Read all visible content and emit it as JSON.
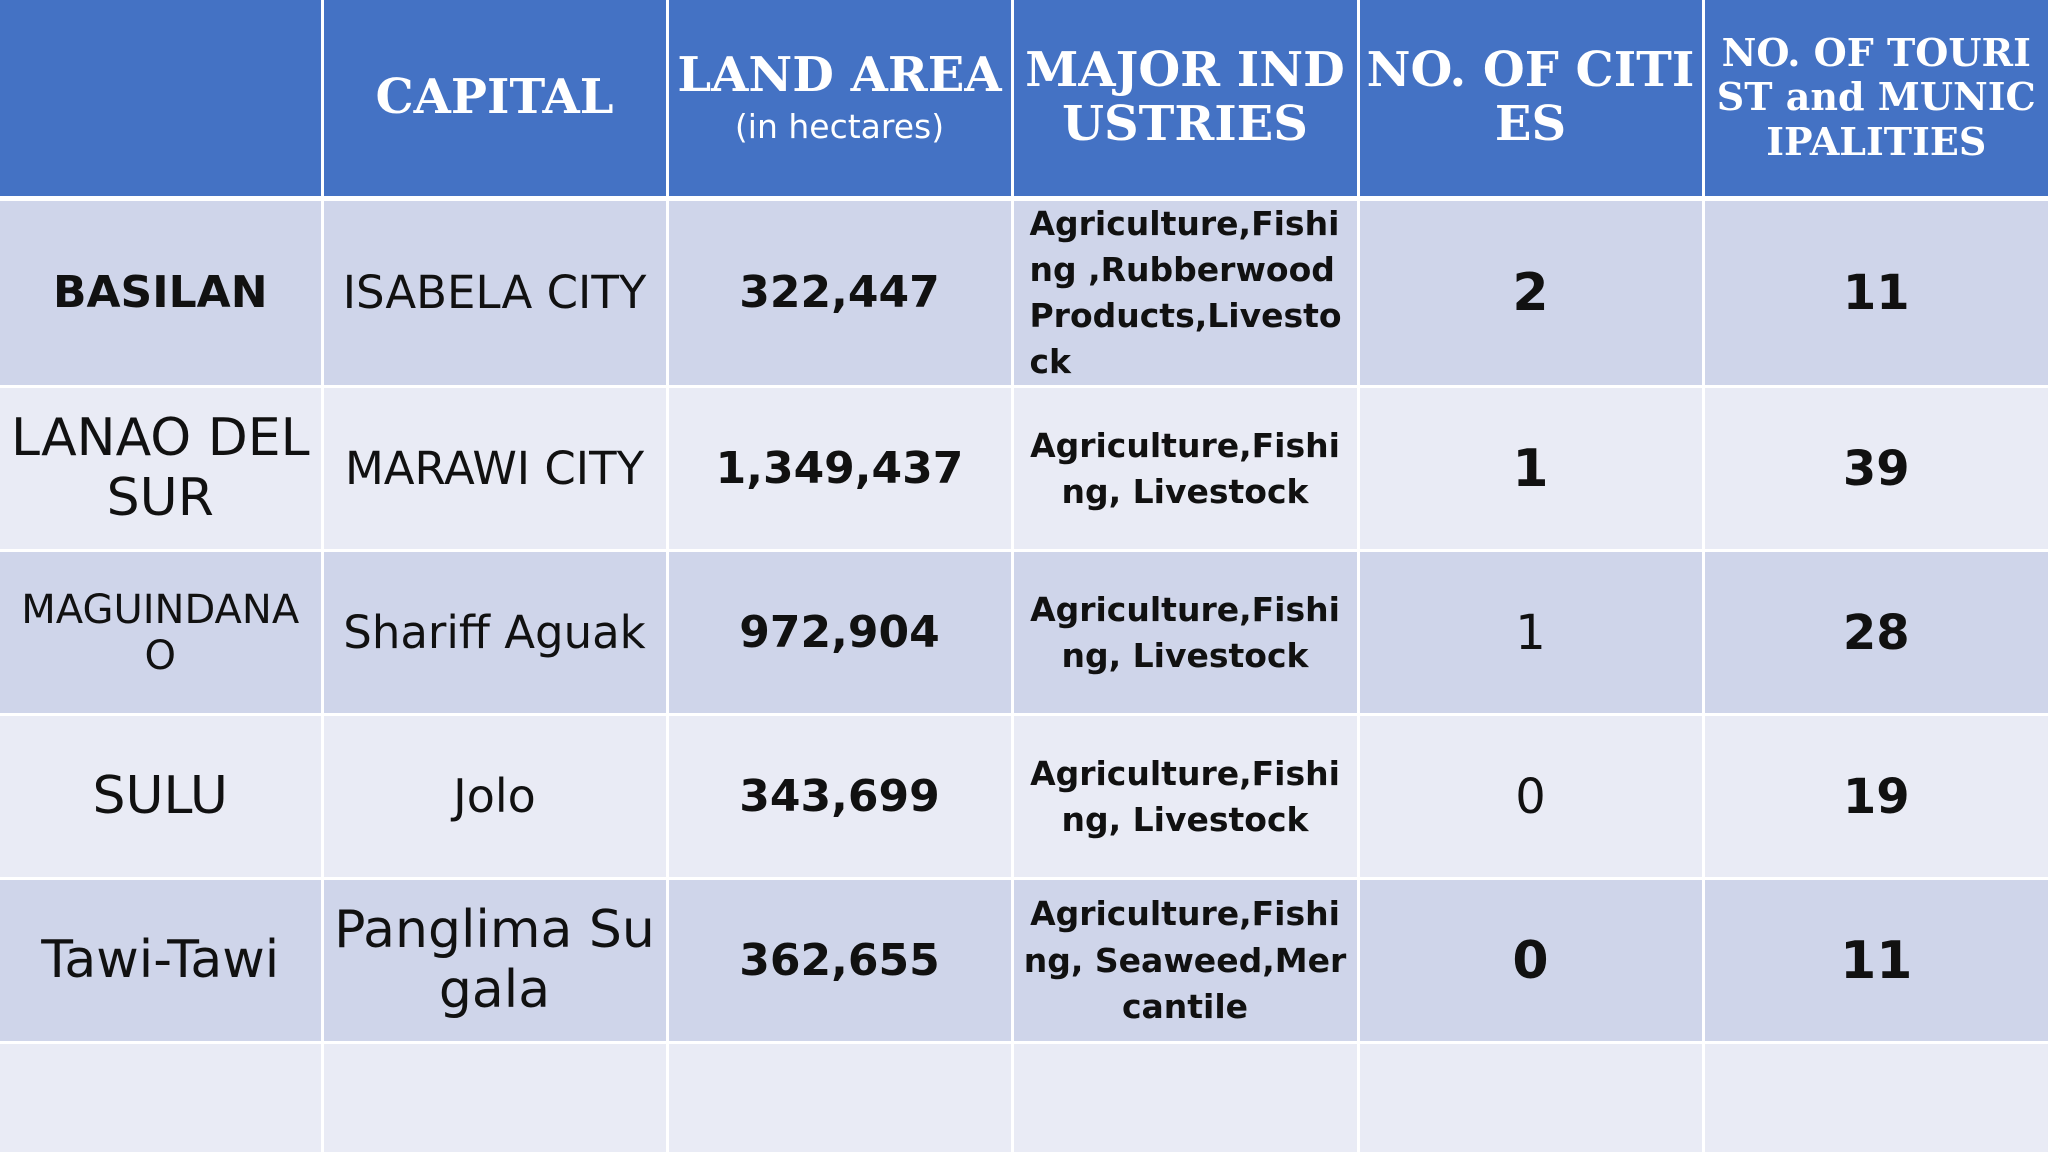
{
  "headers": {
    "province": "",
    "capital": "CAPITAL",
    "land_area": "LAND AREA",
    "land_area_unit": "(in hectares)",
    "major_industries": "MAJOR INDUSTRIES",
    "no_of_cities": "NO. OF CITIES",
    "no_of_tourist_municipalities": "NO. OF TOURIST and MUNICIPALITIES"
  },
  "rows": [
    {
      "province": "BASILAN",
      "capital": "ISABELA CITY",
      "land_area": "322,447",
      "major_industries": "Agriculture,Fishing ,Rubberwood Products,Livestock",
      "no_of_cities": "2",
      "no_of_tourist_municipalities": "11"
    },
    {
      "province": "LANAO DEL SUR",
      "capital": "MARAWI CITY",
      "land_area": "1,349,437",
      "major_industries": "Agriculture,Fishing, Livestock",
      "no_of_cities": "1",
      "no_of_tourist_municipalities": "39"
    },
    {
      "province": "MAGUINDANAO",
      "capital": "Shariff  Aguak",
      "land_area": "972,904",
      "major_industries": "Agriculture,Fishing, Livestock",
      "no_of_cities": "1",
      "no_of_tourist_municipalities": "28"
    },
    {
      "province": "SULU",
      "capital": "Jolo",
      "land_area": "343,699",
      "major_industries": "Agriculture,Fishing, Livestock",
      "no_of_cities": "0",
      "no_of_tourist_municipalities": "19"
    },
    {
      "province": "Tawi-Tawi",
      "capital": "Panglima Sugala",
      "land_area": "362,655",
      "major_industries": "Agriculture,Fishing, Seaweed,Mercantile",
      "no_of_cities": "0",
      "no_of_tourist_municipalities": "11"
    }
  ],
  "colors": {
    "header_bg": "#4472c4",
    "row_odd_bg": "#cfd5ea",
    "row_even_bg": "#e9ebf5"
  }
}
